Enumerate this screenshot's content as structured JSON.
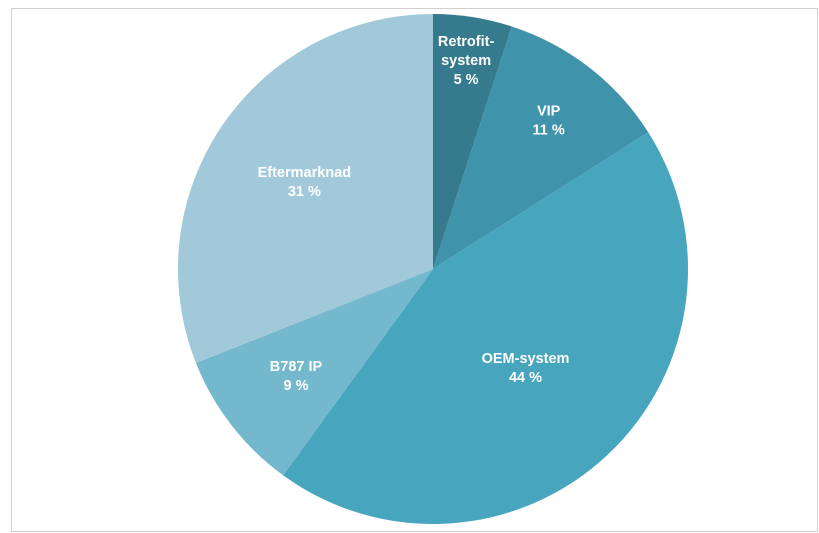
{
  "chart_data": {
    "type": "pie",
    "title": "",
    "start_angle_deg": 0,
    "direction": "clockwise",
    "slices": [
      {
        "label": [
          "Retrofit-",
          "system"
        ],
        "percent_label": "5 %",
        "value": 5,
        "color": "#357a8d"
      },
      {
        "label": [
          "VIP"
        ],
        "percent_label": "11 %",
        "value": 11,
        "color": "#3f93ab"
      },
      {
        "label": [
          "OEM-system"
        ],
        "percent_label": "44 %",
        "value": 44,
        "color": "#47a5be"
      },
      {
        "label": [
          "B787 IP"
        ],
        "percent_label": "9 %",
        "value": 9,
        "color": "#74b8cd"
      },
      {
        "label": [
          "Eftermarknad"
        ],
        "percent_label": "31 %",
        "value": 31,
        "color": "#a1c9da"
      }
    ]
  }
}
